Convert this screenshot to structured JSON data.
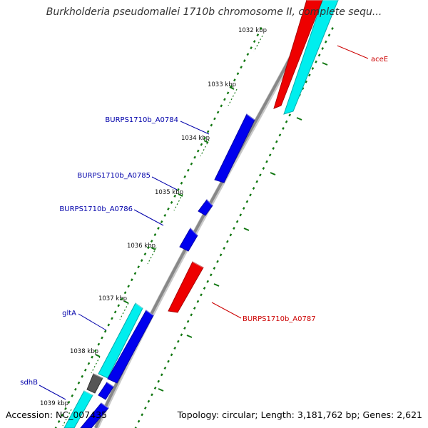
{
  "title": "Burkholderia pseudomallei 1710b chromosome II, complete sequ...",
  "footer": {
    "accession": "Accession: NC_007435",
    "stats": "Topology: circular; Length: 3,181,762 bp; Genes: 2,621"
  },
  "colors": {
    "forward_gene": "#0000ee",
    "reverse_gene": "#ee0000",
    "cds": "#00eeee",
    "other": "#555555",
    "backbone": "#888888",
    "ticks": "#117711",
    "label_forward": "#0000aa",
    "label_reverse": "#cc0000"
  },
  "ticks": [
    {
      "label": "1032 kbp"
    },
    {
      "label": "1033 kbp"
    },
    {
      "label": "1034 kbp"
    },
    {
      "label": "1035 kbp"
    },
    {
      "label": "1036 kbp"
    },
    {
      "label": "1037 kbp"
    },
    {
      "label": "1038 kbp"
    },
    {
      "label": "1039 kbp"
    }
  ],
  "gene_labels": [
    {
      "text": "aceE",
      "strand": "reverse"
    },
    {
      "text": "BURPS1710b_A0784",
      "strand": "forward"
    },
    {
      "text": "BURPS1710b_A0785",
      "strand": "forward"
    },
    {
      "text": "BURPS1710b_A0786",
      "strand": "forward"
    },
    {
      "text": "BURPS1710b_A0787",
      "strand": "reverse"
    },
    {
      "text": "gltA",
      "strand": "forward"
    },
    {
      "text": "sdhB",
      "strand": "forward"
    }
  ]
}
